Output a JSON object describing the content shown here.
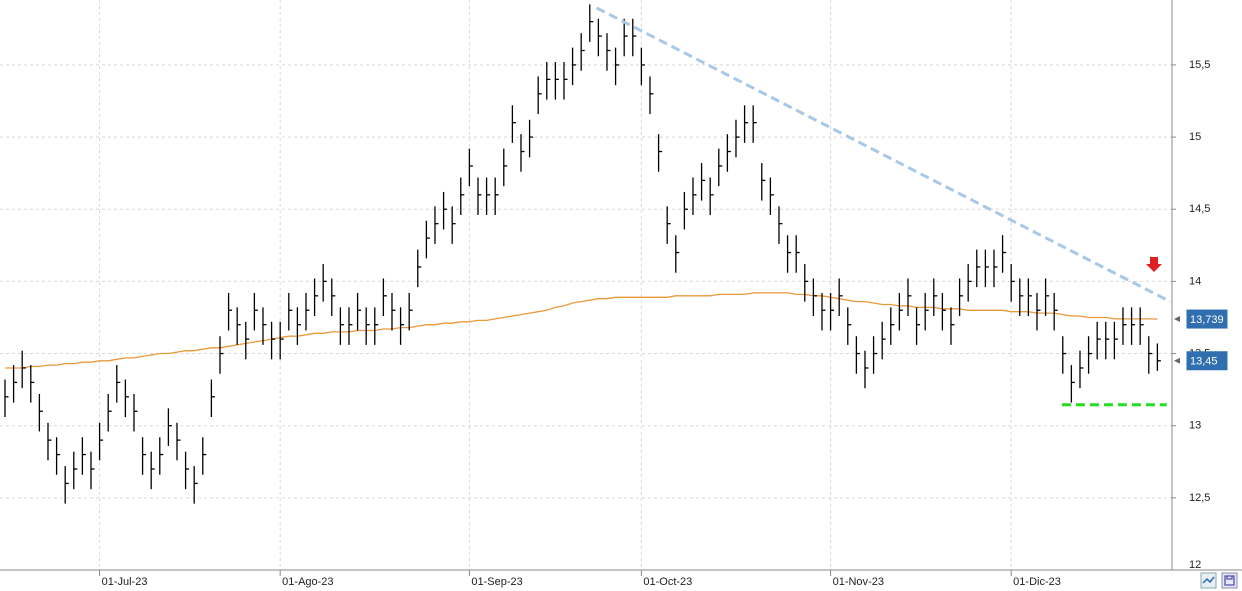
{
  "chart_data": {
    "type": "ohlc",
    "color": "#000000",
    "xlim": [
      -0.58,
      135.7
    ],
    "ylim": [
      12.0,
      15.95
    ],
    "xticks": [
      {
        "value": 11,
        "label": "01-Jul-23"
      },
      {
        "value": 32,
        "label": "01-Ago-23"
      },
      {
        "value": 54,
        "label": "01-Sep-23"
      },
      {
        "value": 74,
        "label": "01-Oct-23"
      },
      {
        "value": 96,
        "label": "01-Nov-23"
      },
      {
        "value": 117,
        "label": "01-Dic-23"
      }
    ],
    "yticks": [
      12,
      {
        "value": 12.5,
        "label": "12,5"
      },
      13,
      {
        "value": 13.5,
        "label": "13,5"
      },
      14,
      {
        "value": 14.5,
        "label": "14,5"
      },
      15,
      {
        "value": 15.5,
        "label": "15,5"
      }
    ],
    "grid": true,
    "high": [
      13.32,
      13.42,
      13.52,
      13.42,
      13.22,
      13.02,
      12.92,
      12.72,
      12.82,
      12.92,
      12.82,
      13.02,
      13.22,
      13.42,
      13.32,
      13.22,
      12.92,
      12.82,
      12.92,
      13.12,
      13.02,
      12.82,
      12.72,
      12.92,
      13.32,
      13.62,
      13.92,
      13.82,
      13.72,
      13.92,
      13.82,
      13.72,
      13.72,
      13.92,
      13.82,
      13.92,
      14.02,
      14.12,
      14.02,
      13.82,
      13.82,
      13.92,
      13.82,
      13.82,
      14.02,
      13.92,
      13.82,
      13.92,
      14.22,
      14.42,
      14.52,
      14.62,
      14.52,
      14.72,
      14.92,
      14.72,
      14.72,
      14.72,
      14.92,
      15.22,
      15.02,
      15.12,
      15.42,
      15.52,
      15.52,
      15.52,
      15.62,
      15.72,
      15.92,
      15.82,
      15.72,
      15.62,
      15.82,
      15.82,
      15.62,
      15.42,
      15.02,
      14.52,
      14.32,
      14.62,
      14.72,
      14.82,
      14.72,
      14.92,
      15.02,
      15.12,
      15.22,
      15.22,
      14.82,
      14.72,
      14.52,
      14.32,
      14.32,
      14.12,
      14.02,
      13.92,
      13.92,
      14.02,
      13.82,
      13.62,
      13.52,
      13.62,
      13.72,
      13.82,
      13.92,
      14.02,
      13.82,
      13.92,
      14.02,
      13.92,
      13.82,
      14.02,
      14.12,
      14.22,
      14.22,
      14.22,
      14.32,
      14.12,
      14.02,
      14.02,
      13.92,
      14.02,
      13.92,
      13.62,
      13.42,
      13.52,
      13.62,
      13.72,
      13.72,
      13.72,
      13.82,
      13.82,
      13.82,
      13.62,
      13.57
    ],
    "low": [
      13.06,
      13.16,
      13.26,
      13.16,
      12.96,
      12.76,
      12.66,
      12.46,
      12.56,
      12.66,
      12.56,
      12.76,
      12.96,
      13.16,
      13.06,
      12.96,
      12.66,
      12.56,
      12.66,
      12.86,
      12.76,
      12.56,
      12.46,
      12.66,
      13.06,
      13.36,
      13.66,
      13.56,
      13.46,
      13.66,
      13.56,
      13.46,
      13.46,
      13.66,
      13.56,
      13.66,
      13.76,
      13.86,
      13.76,
      13.56,
      13.56,
      13.66,
      13.56,
      13.56,
      13.76,
      13.66,
      13.56,
      13.66,
      13.96,
      14.16,
      14.26,
      14.36,
      14.26,
      14.46,
      14.66,
      14.46,
      14.46,
      14.46,
      14.66,
      14.96,
      14.76,
      14.86,
      15.16,
      15.26,
      15.26,
      15.26,
      15.36,
      15.46,
      15.66,
      15.56,
      15.46,
      15.36,
      15.56,
      15.56,
      15.36,
      15.16,
      14.76,
      14.26,
      14.06,
      14.36,
      14.46,
      14.56,
      14.46,
      14.66,
      14.76,
      14.86,
      14.96,
      14.96,
      14.56,
      14.46,
      14.26,
      14.06,
      14.06,
      13.86,
      13.76,
      13.66,
      13.66,
      13.76,
      13.56,
      13.36,
      13.26,
      13.36,
      13.46,
      13.56,
      13.66,
      13.76,
      13.56,
      13.66,
      13.76,
      13.66,
      13.56,
      13.76,
      13.86,
      13.96,
      13.96,
      13.96,
      14.06,
      13.86,
      13.76,
      13.76,
      13.66,
      13.76,
      13.66,
      13.36,
      13.16,
      13.26,
      13.36,
      13.46,
      13.46,
      13.46,
      13.56,
      13.56,
      13.56,
      13.36,
      13.38
    ],
    "close": [
      13.2,
      13.3,
      13.4,
      13.3,
      13.1,
      12.9,
      12.8,
      12.6,
      12.7,
      12.8,
      12.7,
      12.9,
      13.1,
      13.3,
      13.2,
      13.1,
      12.8,
      12.7,
      12.8,
      13.0,
      12.9,
      12.7,
      12.6,
      12.8,
      13.2,
      13.5,
      13.8,
      13.7,
      13.6,
      13.8,
      13.7,
      13.6,
      13.6,
      13.8,
      13.7,
      13.8,
      13.9,
      14.0,
      13.9,
      13.7,
      13.7,
      13.8,
      13.7,
      13.7,
      13.9,
      13.8,
      13.7,
      13.8,
      14.1,
      14.3,
      14.4,
      14.5,
      14.4,
      14.6,
      14.8,
      14.6,
      14.6,
      14.6,
      14.8,
      15.1,
      14.9,
      15.0,
      15.3,
      15.4,
      15.4,
      15.4,
      15.5,
      15.6,
      15.8,
      15.7,
      15.6,
      15.5,
      15.7,
      15.7,
      15.5,
      15.3,
      14.9,
      14.4,
      14.2,
      14.5,
      14.6,
      14.7,
      14.6,
      14.8,
      14.9,
      15.0,
      15.1,
      15.1,
      14.7,
      14.6,
      14.4,
      14.2,
      14.2,
      14.0,
      13.9,
      13.8,
      13.8,
      13.9,
      13.7,
      13.5,
      13.4,
      13.5,
      13.6,
      13.7,
      13.8,
      13.9,
      13.7,
      13.8,
      13.9,
      13.8,
      13.7,
      13.9,
      14.0,
      14.1,
      14.1,
      14.1,
      14.2,
      14.0,
      13.9,
      13.9,
      13.8,
      13.9,
      13.8,
      13.5,
      13.3,
      13.4,
      13.5,
      13.6,
      13.6,
      13.6,
      13.7,
      13.7,
      13.7,
      13.5,
      13.45
    ],
    "close_label": "13,45",
    "moving_average": {
      "color": "#e89a3a",
      "last_label": "13,739",
      "values": [
        13.4,
        13.4,
        13.4,
        13.41,
        13.41,
        13.42,
        13.42,
        13.43,
        13.43,
        13.44,
        13.44,
        13.45,
        13.45,
        13.46,
        13.47,
        13.47,
        13.48,
        13.49,
        13.5,
        13.5,
        13.51,
        13.52,
        13.52,
        13.53,
        13.54,
        13.54,
        13.55,
        13.56,
        13.57,
        13.58,
        13.59,
        13.6,
        13.61,
        13.62,
        13.62,
        13.63,
        13.64,
        13.64,
        13.65,
        13.65,
        13.65,
        13.66,
        13.66,
        13.66,
        13.67,
        13.67,
        13.68,
        13.68,
        13.69,
        13.7,
        13.7,
        13.71,
        13.71,
        13.72,
        13.72,
        13.73,
        13.73,
        13.74,
        13.75,
        13.76,
        13.77,
        13.78,
        13.79,
        13.8,
        13.82,
        13.83,
        13.85,
        13.86,
        13.87,
        13.88,
        13.88,
        13.89,
        13.89,
        13.89,
        13.89,
        13.89,
        13.89,
        13.89,
        13.9,
        13.9,
        13.9,
        13.9,
        13.9,
        13.91,
        13.91,
        13.91,
        13.91,
        13.92,
        13.92,
        13.92,
        13.92,
        13.92,
        13.91,
        13.91,
        13.9,
        13.9,
        13.89,
        13.88,
        13.87,
        13.86,
        13.86,
        13.85,
        13.84,
        13.84,
        13.83,
        13.83,
        13.82,
        13.82,
        13.82,
        13.81,
        13.81,
        13.81,
        13.8,
        13.8,
        13.8,
        13.8,
        13.8,
        13.79,
        13.79,
        13.79,
        13.78,
        13.78,
        13.78,
        13.77,
        13.76,
        13.76,
        13.75,
        13.75,
        13.75,
        13.74,
        13.74,
        13.74,
        13.74,
        13.74,
        13.739
      ]
    },
    "trendlines": [
      {
        "color": "#a8c8e8",
        "x": [
          68.8,
          135.5
        ],
        "y": [
          15.895,
          13.86
        ]
      },
      {
        "color": "#22dd22",
        "x": [
          122.9,
          135.1
        ],
        "y": [
          13.145,
          13.145
        ]
      }
    ]
  }
}
